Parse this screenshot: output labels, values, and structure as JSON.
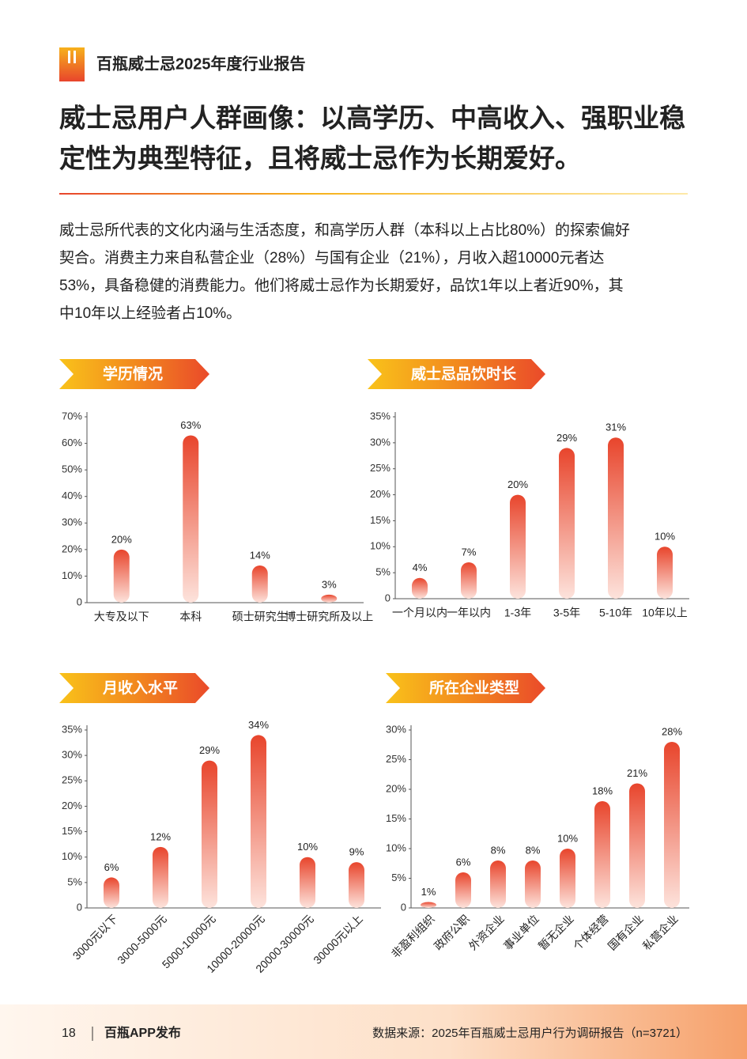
{
  "header": {
    "title": "百瓶威士忌2025年度行业报告"
  },
  "headline": [
    "威士忌用户人群画像：以高学历、中高收入、强职业稳",
    "定性为典型特征，且将威士忌作为长期爱好。"
  ],
  "paragraph": [
    "威士忌所代表的文化内涵与生活态度，和高学历人群（本科以上占比80%）的探索偏好",
    "契合。消费主力来自私营企业（28%）与国有企业（21%），月收入超10000元者达",
    "53%，具备稳健的消费能力。他们将威士忌作为长期爱好，品饮1年以上者近90%，其",
    "中10年以上经验者占10%。"
  ],
  "chart_data": [
    {
      "type": "bar",
      "title": "学历情况",
      "categories": [
        "大专及以下",
        "本科",
        "硕士研究生",
        "博士研究所及以上"
      ],
      "values": [
        20,
        63,
        14,
        3
      ],
      "value_labels": [
        "20%",
        "63%",
        "14%",
        "3%"
      ],
      "ylim": [
        0,
        70
      ],
      "yticks": [
        0,
        {
          "value": 10,
          "label": "10%"
        },
        {
          "value": 20,
          "label": "20%"
        },
        {
          "value": 30,
          "label": "30%"
        },
        {
          "value": 40,
          "label": "40%"
        },
        {
          "value": 50,
          "label": "50%"
        },
        {
          "value": 60,
          "label": "60%"
        },
        {
          "value": 70,
          "label": "70%"
        }
      ],
      "color": "#e8452c"
    },
    {
      "type": "bar",
      "title": "威士忌品饮时长",
      "categories": [
        "一个月以内",
        "一年以内",
        "1-3年",
        "3-5年",
        "5-10年",
        "10年以上"
      ],
      "values": [
        4,
        7,
        20,
        29,
        31,
        10
      ],
      "value_labels": [
        "4%",
        "7%",
        "20%",
        "29%",
        "31%",
        "10%"
      ],
      "ylim": [
        0,
        35
      ],
      "yticks": [
        0,
        {
          "value": 5,
          "label": "5%"
        },
        {
          "value": 10,
          "label": "10%"
        },
        {
          "value": 15,
          "label": "15%"
        },
        {
          "value": 20,
          "label": "20%"
        },
        {
          "value": 25,
          "label": "25%"
        },
        {
          "value": 30,
          "label": "30%"
        },
        {
          "value": 35,
          "label": "35%"
        }
      ],
      "color": "#e8452c"
    },
    {
      "type": "bar",
      "title": "月收入水平",
      "categories": [
        "3000元以下",
        "3000-5000元",
        "5000-10000元",
        "10000-20000元",
        "20000-30000元",
        "30000元以上"
      ],
      "values": [
        6,
        12,
        29,
        34,
        10,
        9
      ],
      "value_labels": [
        "6%",
        "12%",
        "29%",
        "34%",
        "10%",
        "9%"
      ],
      "ylim": [
        0,
        35
      ],
      "yticks": [
        0,
        {
          "value": 5,
          "label": "5%"
        },
        {
          "value": 10,
          "label": "10%"
        },
        {
          "value": 15,
          "label": "15%"
        },
        {
          "value": 20,
          "label": "20%"
        },
        {
          "value": 25,
          "label": "25%"
        },
        {
          "value": 30,
          "label": "30%"
        },
        {
          "value": 35,
          "label": "35%"
        }
      ],
      "color": "#e8452c"
    },
    {
      "type": "bar",
      "title": "所在企业类型",
      "categories": [
        "非盈利组织",
        "政府公职",
        "外资企业",
        "事业单位",
        "暂无企业",
        "个体经营",
        "国有企业",
        "私营企业"
      ],
      "values": [
        1,
        6,
        8,
        8,
        10,
        18,
        21,
        28
      ],
      "value_labels": [
        "1%",
        "6%",
        "8%",
        "8%",
        "10%",
        "18%",
        "21%",
        "28%"
      ],
      "ylim": [
        0,
        30
      ],
      "yticks": [
        0,
        {
          "value": 5,
          "label": "5%"
        },
        {
          "value": 10,
          "label": "10%"
        },
        {
          "value": 15,
          "label": "15%"
        },
        {
          "value": 20,
          "label": "20%"
        },
        {
          "value": 25,
          "label": "25%"
        },
        {
          "value": 30,
          "label": "30%"
        }
      ],
      "color": "#e8452c"
    }
  ],
  "footer": {
    "page": "18",
    "brand": "百瓶APP发布",
    "source": "数据来源：2025年百瓶威士忌用户行为调研报告（n=3721）"
  }
}
